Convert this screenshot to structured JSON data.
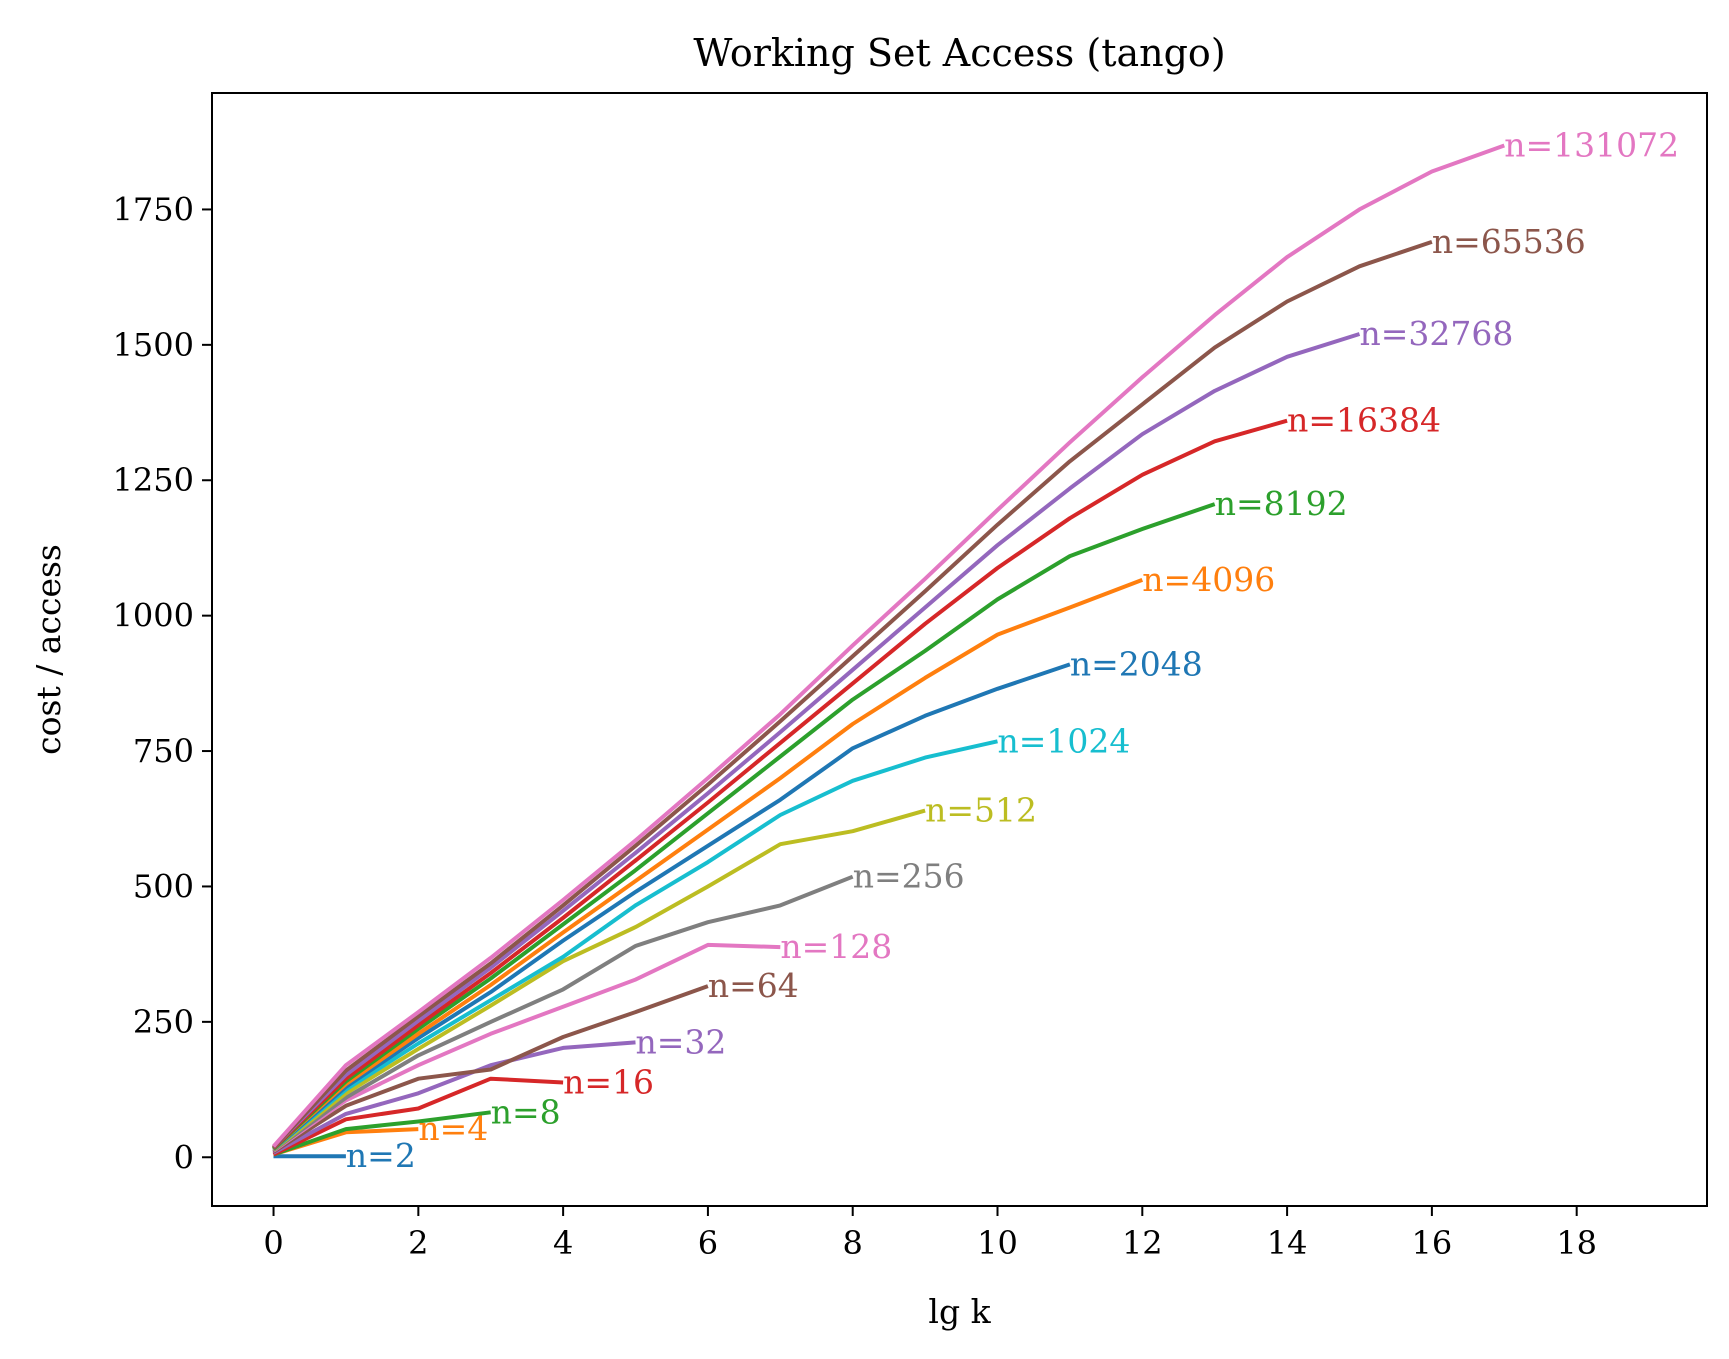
{
  "chart_data": {
    "type": "line",
    "title": "Working Set Access (tango)",
    "xlabel": "lg k",
    "ylabel": "cost / access",
    "xlim": [
      -0.85,
      19.8
    ],
    "ylim": [
      -90,
      1965
    ],
    "xticks": [
      0,
      2,
      4,
      6,
      8,
      10,
      12,
      14,
      16,
      18
    ],
    "yticks": [
      0,
      250,
      500,
      750,
      1000,
      1250,
      1500,
      1750
    ],
    "grid": false,
    "legend": "labels at line ends",
    "series": [
      {
        "name": "n=2",
        "color": "#1f77b4",
        "x": [
          0,
          1
        ],
        "y": [
          2,
          2
        ]
      },
      {
        "name": "n=4",
        "color": "#ff7f0e",
        "x": [
          0,
          1,
          2
        ],
        "y": [
          5,
          46,
          52
        ]
      },
      {
        "name": "n=8",
        "color": "#2ca02c",
        "x": [
          0,
          1,
          2,
          3
        ],
        "y": [
          5,
          52,
          66,
          83
        ]
      },
      {
        "name": "n=16",
        "color": "#d62728",
        "x": [
          0,
          1,
          2,
          3,
          4
        ],
        "y": [
          5,
          70,
          90,
          145,
          138
        ]
      },
      {
        "name": "n=32",
        "color": "#9467bd",
        "x": [
          0,
          1,
          2,
          3,
          4,
          5
        ],
        "y": [
          8,
          80,
          118,
          170,
          202,
          212
        ]
      },
      {
        "name": "n=64",
        "color": "#8c564b",
        "x": [
          0,
          1,
          2,
          3,
          4,
          5,
          6
        ],
        "y": [
          10,
          95,
          145,
          162,
          222,
          268,
          316
        ]
      },
      {
        "name": "n=128",
        "color": "#e377c2",
        "x": [
          0,
          1,
          2,
          3,
          4,
          5,
          6,
          7
        ],
        "y": [
          12,
          105,
          170,
          228,
          278,
          328,
          392,
          388
        ]
      },
      {
        "name": "n=256",
        "color": "#7f7f7f",
        "x": [
          0,
          1,
          2,
          3,
          4,
          5,
          6,
          7,
          8
        ],
        "y": [
          13,
          110,
          188,
          250,
          310,
          390,
          434,
          465,
          518
        ]
      },
      {
        "name": "n=512",
        "color": "#bcbd22",
        "x": [
          0,
          1,
          2,
          3,
          4,
          5,
          6,
          7,
          8,
          9
        ],
        "y": [
          14,
          118,
          200,
          280,
          362,
          425,
          500,
          578,
          602,
          640
        ]
      },
      {
        "name": "n=1024",
        "color": "#17becf",
        "x": [
          0,
          1,
          2,
          3,
          4,
          5,
          6,
          7,
          8,
          9,
          10
        ],
        "y": [
          15,
          125,
          210,
          290,
          370,
          465,
          545,
          632,
          695,
          738,
          768
        ]
      },
      {
        "name": "n=2048",
        "color": "#1f77b4",
        "x": [
          0,
          1,
          2,
          3,
          4,
          5,
          6,
          7,
          8,
          9,
          10,
          11
        ],
        "y": [
          15,
          130,
          220,
          305,
          400,
          490,
          575,
          660,
          755,
          815,
          865,
          910
        ]
      },
      {
        "name": "n=4096",
        "color": "#ff7f0e",
        "x": [
          0,
          1,
          2,
          3,
          4,
          5,
          6,
          7,
          8,
          9,
          10,
          11,
          12
        ],
        "y": [
          16,
          135,
          228,
          318,
          415,
          510,
          605,
          700,
          800,
          885,
          965,
          1015,
          1066
        ]
      },
      {
        "name": "n=8192",
        "color": "#2ca02c",
        "x": [
          0,
          1,
          2,
          3,
          4,
          5,
          6,
          7,
          8,
          9,
          10,
          11,
          12,
          13
        ],
        "y": [
          16,
          140,
          237,
          330,
          430,
          530,
          635,
          740,
          845,
          935,
          1030,
          1110,
          1160,
          1206
        ]
      },
      {
        "name": "n=16384",
        "color": "#d62728",
        "x": [
          0,
          1,
          2,
          3,
          4,
          5,
          6,
          7,
          8,
          9,
          10,
          11,
          12,
          13,
          14
        ],
        "y": [
          17,
          145,
          244,
          340,
          442,
          548,
          655,
          765,
          875,
          985,
          1088,
          1180,
          1260,
          1322,
          1360
        ]
      },
      {
        "name": "n=32768",
        "color": "#9467bd",
        "x": [
          0,
          1,
          2,
          3,
          4,
          5,
          6,
          7,
          8,
          9,
          10,
          11,
          12,
          13,
          14,
          15
        ],
        "y": [
          18,
          152,
          252,
          350,
          455,
          562,
          672,
          785,
          900,
          1015,
          1130,
          1235,
          1335,
          1415,
          1478,
          1520
        ]
      },
      {
        "name": "n=65536",
        "color": "#8c564b",
        "x": [
          0,
          1,
          2,
          3,
          4,
          5,
          6,
          7,
          8,
          9,
          10,
          11,
          12,
          13,
          14,
          15,
          16
        ],
        "y": [
          18,
          160,
          260,
          358,
          465,
          575,
          688,
          805,
          925,
          1045,
          1168,
          1285,
          1390,
          1495,
          1580,
          1645,
          1690
        ]
      },
      {
        "name": "n=131072",
        "color": "#e377c2",
        "x": [
          0,
          1,
          2,
          3,
          4,
          5,
          6,
          7,
          8,
          9,
          10,
          11,
          12,
          13,
          14,
          15,
          16,
          17
        ],
        "y": [
          20,
          170,
          268,
          368,
          475,
          585,
          700,
          818,
          945,
          1068,
          1195,
          1320,
          1440,
          1555,
          1662,
          1750,
          1820,
          1868
        ]
      }
    ]
  }
}
